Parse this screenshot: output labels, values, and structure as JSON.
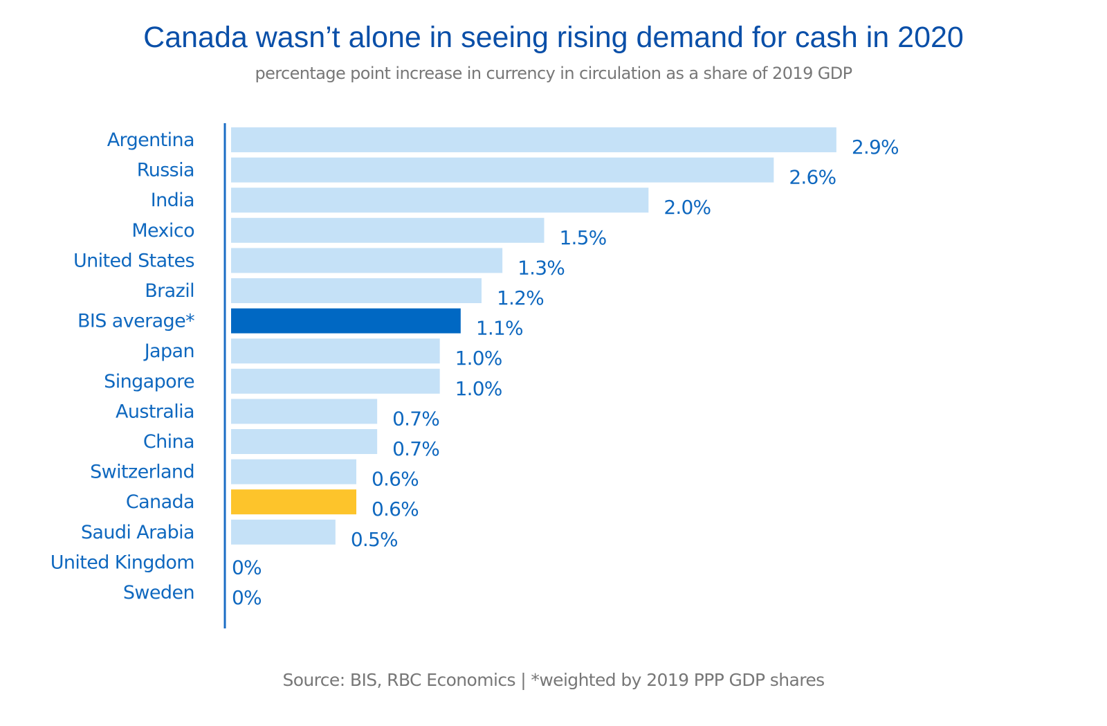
{
  "chart_data": {
    "type": "bar",
    "orientation": "horizontal",
    "title": "Canada wasn’t alone in seeing rising demand for cash in 2020",
    "subtitle": "percentage point increase in currency in circulation as a share of 2019 GDP",
    "source": "Source: BIS, RBC Economics | *weighted by 2019 PPP GDP shares",
    "xlabel": "",
    "ylabel": "",
    "xlim": [
      0,
      3.0
    ],
    "grid": false,
    "legend": "none",
    "unit": "%",
    "categories": [
      "Argentina",
      "Russia",
      "India",
      "Mexico",
      "United States",
      "Brazil",
      "BIS average*",
      "Japan",
      "Singapore",
      "Australia",
      "China",
      "Switzerland",
      "Canada",
      "Saudi Arabia",
      "United Kingdom",
      "Sweden"
    ],
    "values": [
      2.9,
      2.6,
      2.0,
      1.5,
      1.3,
      1.2,
      1.1,
      1.0,
      1.0,
      0.7,
      0.7,
      0.6,
      0.6,
      0.5,
      0,
      0
    ],
    "value_labels": [
      "2.9%",
      "2.6%",
      "2.0%",
      "1.5%",
      "1.3%",
      "1.2%",
      "1.1%",
      "1.0%",
      "1.0%",
      "0.7%",
      "0.7%",
      "0.6%",
      "0.6%",
      "0.5%",
      "0%",
      "0%"
    ],
    "highlights": {
      "BIS average*": "average",
      "Canada": "focus"
    },
    "colors": {
      "default_bar": "#c5e1f7",
      "average_bar": "#0068c3",
      "focus_bar": "#fdc42b",
      "axis": "#1a6cc4",
      "labels": "#0f68bf",
      "title": "#0a4fa8",
      "subtitle": "#777777"
    }
  }
}
